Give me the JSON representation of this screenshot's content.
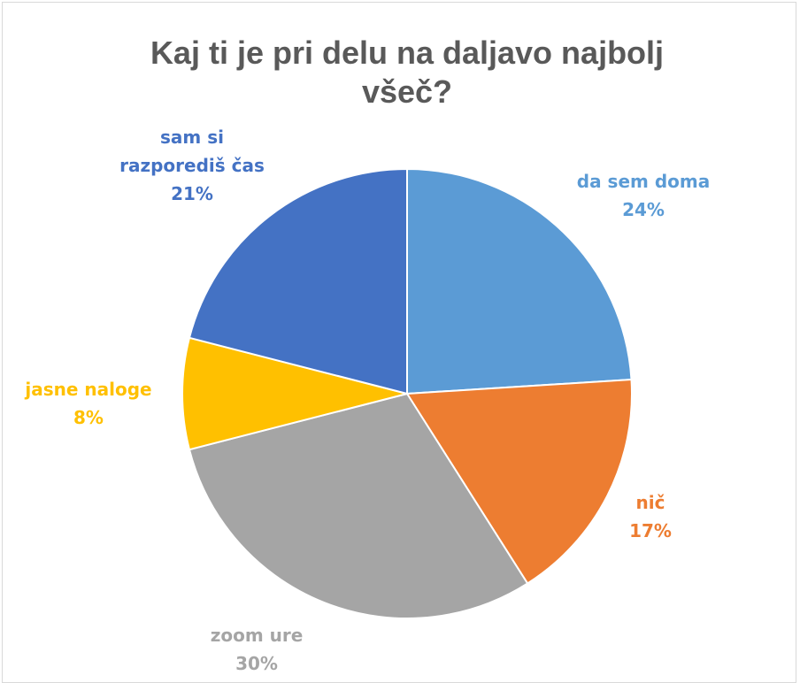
{
  "chart_data": {
    "type": "pie",
    "title": "Kaj ti je pri delu na daljavo najbolj všeč?",
    "categories": [
      "da sem doma",
      "nič",
      "zoom ure",
      "jasne naloge",
      "sam si razporediš čas"
    ],
    "values": [
      24,
      17,
      30,
      8,
      21
    ],
    "value_labels": [
      "24%",
      "17%",
      "30%",
      "8%",
      "21%"
    ],
    "colors": [
      "#5b9bd5",
      "#ed7d31",
      "#a5a5a5",
      "#ffc000",
      "#4472c4"
    ]
  }
}
